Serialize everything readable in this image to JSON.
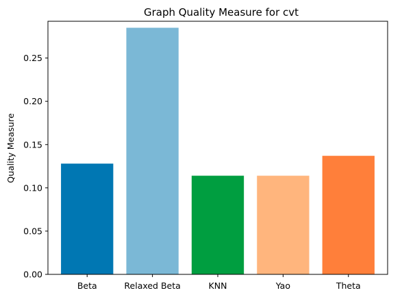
{
  "chart_data": {
    "type": "bar",
    "title": "Graph Quality Measure for cvt",
    "xlabel": "",
    "ylabel": "Quality Measure",
    "categories": [
      "Beta",
      "Relaxed Beta",
      "KNN",
      "Yao",
      "Theta"
    ],
    "values": [
      0.128,
      0.285,
      0.114,
      0.114,
      0.137
    ],
    "colors": [
      "#0077b3",
      "#7bb8d6",
      "#009e40",
      "#ffb57d",
      "#ff7f3a"
    ],
    "ylim": [
      0,
      0.2925
    ],
    "yticks": [
      0.0,
      0.05,
      0.1,
      0.15,
      0.2,
      0.25
    ],
    "ytick_labels": [
      "0.00",
      "0.05",
      "0.10",
      "0.15",
      "0.20",
      "0.25"
    ],
    "grid": false
  }
}
